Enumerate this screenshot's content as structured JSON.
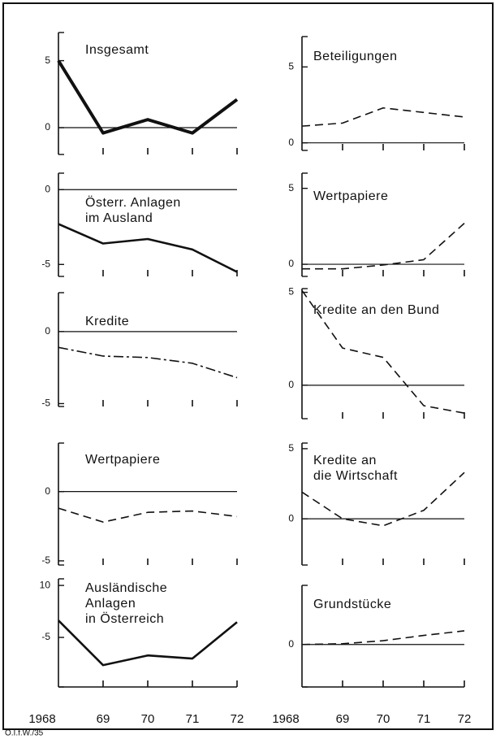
{
  "footer": "Ö.I.f.W./35",
  "chart_data": [
    {
      "type": "line",
      "title": [
        "Insgesamt"
      ],
      "values": [
        5,
        -0.4,
        0.6,
        -0.4,
        2.1
      ],
      "ylim": [
        -2,
        7.1
      ],
      "yticks": [
        0,
        5
      ],
      "reference_line": 0,
      "line_style": "solid",
      "line_width": 4,
      "color": "#111111"
    },
    {
      "type": "line",
      "title": [
        "Beteiligungen"
      ],
      "values": [
        1.1,
        1.3,
        2.3,
        2.0,
        1.7
      ],
      "ylim": [
        -0.5,
        7
      ],
      "yticks": [
        0,
        5
      ],
      "reference_line": 0,
      "line_style": "dashed",
      "line_width": 1.6,
      "color": "#111111"
    },
    {
      "type": "line",
      "title": [
        "Österr. Anlagen",
        "im Ausland"
      ],
      "values": [
        -2.3,
        -3.6,
        -3.3,
        -4.0,
        -5.5
      ],
      "ylim": [
        -5.8,
        1.1
      ],
      "yticks": [
        0,
        -5
      ],
      "reference_line": 0,
      "line_style": "solid",
      "line_width": 2.6,
      "color": "#111111"
    },
    {
      "type": "line",
      "title": [
        "Wertpapiere"
      ],
      "values": [
        -0.3,
        -0.3,
        -0.05,
        0.3,
        2.7
      ],
      "ylim": [
        -0.8,
        6
      ],
      "yticks": [
        0,
        5
      ],
      "reference_line": 0,
      "line_style": "dashed",
      "line_width": 1.6,
      "color": "#111111"
    },
    {
      "type": "line",
      "title": [
        "Kredite"
      ],
      "values": [
        -1.1,
        -1.7,
        -1.8,
        -2.2,
        -3.2
      ],
      "ylim": [
        -5.2,
        2.7
      ],
      "yticks": [
        0,
        -5
      ],
      "reference_line": 0,
      "line_style": "dashdot",
      "line_width": 1.6,
      "color": "#111111"
    },
    {
      "type": "line",
      "title": [
        "Kredite an den Bund"
      ],
      "values": [
        5.1,
        2.0,
        1.5,
        -1.1,
        -1.5
      ],
      "ylim": [
        -1.8,
        5.2
      ],
      "yticks": [
        0,
        5
      ],
      "reference_line": 0,
      "line_style": "dashed",
      "line_width": 1.6,
      "color": "#111111"
    },
    {
      "type": "line",
      "title": [
        "Wertpapiere"
      ],
      "values": [
        -1.2,
        -2.2,
        -1.5,
        -1.4,
        -1.8
      ],
      "ylim": [
        -5.3,
        3.5
      ],
      "yticks": [
        0,
        -5
      ],
      "reference_line": 0,
      "line_style": "dashed",
      "line_width": 1.6,
      "color": "#111111"
    },
    {
      "type": "line",
      "title": [
        "Kredite an",
        "die Wirtschaft"
      ],
      "values": [
        1.9,
        0,
        -0.5,
        0.6,
        3.3
      ],
      "ylim": [
        -3.3,
        5.4
      ],
      "yticks": [
        0,
        5
      ],
      "reference_line": 0,
      "line_style": "dashed",
      "line_width": 1.6,
      "color": "#111111"
    },
    {
      "type": "line",
      "title": [
        "Ausländische",
        "Anlagen",
        "in Österreich"
      ],
      "categories": [
        "1968",
        "69",
        "70",
        "71",
        "72"
      ],
      "values": [
        -0.1,
        -13,
        -10.2,
        -11.1,
        -0.6
      ],
      "ylim": [
        -19.3,
        11.9
      ],
      "yticks": [
        10,
        -5
      ],
      "line_style": "solid",
      "line_width": 2.6,
      "color": "#111111"
    },
    {
      "type": "line",
      "title": [
        "Grundstücke"
      ],
      "categories": [
        "1968",
        "69",
        "70",
        "71",
        "72"
      ],
      "values": [
        0,
        0.05,
        0.25,
        0.6,
        0.9
      ],
      "ylim": [
        -2.8,
        3.9
      ],
      "yticks": [
        0
      ],
      "reference_line": 0,
      "line_style": "dashed",
      "line_width": 1.6,
      "color": "#111111"
    }
  ]
}
